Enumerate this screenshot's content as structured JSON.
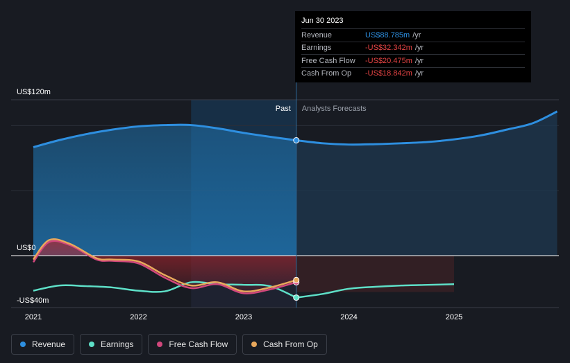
{
  "tooltip": {
    "date": "Jun 30 2023",
    "rows": [
      {
        "label": "Revenue",
        "value": "US$88.785m",
        "unit": "/yr",
        "color": "#2e8fe0"
      },
      {
        "label": "Earnings",
        "value": "-US$32.342m",
        "unit": "/yr",
        "color": "#e84545"
      },
      {
        "label": "Free Cash Flow",
        "value": "-US$20.475m",
        "unit": "/yr",
        "color": "#e84545"
      },
      {
        "label": "Cash From Op",
        "value": "-US$18.842m",
        "unit": "/yr",
        "color": "#e84545"
      }
    ]
  },
  "legend": [
    {
      "label": "Revenue",
      "color": "#2e8fe0"
    },
    {
      "label": "Earnings",
      "color": "#5ee0c8"
    },
    {
      "label": "Free Cash Flow",
      "color": "#d1477c"
    },
    {
      "label": "Cash From Op",
      "color": "#e8a85c"
    }
  ],
  "chart_data": {
    "type": "line",
    "y_tick_labels": [
      "US$120m",
      "US$0",
      "-US$40m"
    ],
    "x_tick_labels": [
      "2021",
      "2022",
      "2023",
      "2024",
      "2025"
    ],
    "past_label": "Past",
    "forecast_label": "Analysts Forecasts",
    "ylim": [
      -40,
      120
    ],
    "xlim": [
      2020.9,
      2025.98
    ],
    "y_ticks": [
      120,
      0,
      -40
    ],
    "x_ticks": [
      2021,
      2022,
      2023,
      2024,
      2025
    ],
    "gridlines": [
      100,
      50
    ],
    "past_split": 2023.5,
    "highlight_start": 2022.5,
    "colors": {
      "revenue": "#2e8fe0",
      "earnings": "#5ee0c8",
      "fcf": "#d1477c",
      "cfo": "#e8a85c"
    },
    "series": [
      {
        "name": "Revenue",
        "key": "revenue",
        "points": [
          [
            2021.0,
            83.5
          ],
          [
            2021.25,
            89
          ],
          [
            2021.5,
            93.5
          ],
          [
            2021.75,
            97
          ],
          [
            2022.0,
            99.5
          ],
          [
            2022.25,
            100.5
          ],
          [
            2022.5,
            100.5
          ],
          [
            2022.75,
            98
          ],
          [
            2023.0,
            94.5
          ],
          [
            2023.25,
            91.5
          ],
          [
            2023.5,
            88.8
          ]
        ],
        "forecast": [
          [
            2023.5,
            88.8
          ],
          [
            2023.75,
            86.5
          ],
          [
            2024.0,
            85.5
          ],
          [
            2024.25,
            85.8
          ],
          [
            2024.5,
            86.5
          ],
          [
            2024.75,
            87.5
          ],
          [
            2025.0,
            89.5
          ],
          [
            2025.25,
            92.5
          ],
          [
            2025.5,
            97
          ],
          [
            2025.75,
            102
          ],
          [
            2025.98,
            111
          ]
        ]
      },
      {
        "name": "Earnings",
        "key": "earnings",
        "points": [
          [
            2021.0,
            -27
          ],
          [
            2021.25,
            -23
          ],
          [
            2021.5,
            -23.5
          ],
          [
            2021.75,
            -24.5
          ],
          [
            2022.0,
            -27
          ],
          [
            2022.25,
            -27.5
          ],
          [
            2022.5,
            -20.5
          ],
          [
            2022.75,
            -22
          ],
          [
            2023.0,
            -22.5
          ],
          [
            2023.25,
            -23.5
          ],
          [
            2023.5,
            -32.3
          ]
        ],
        "forecast": [
          [
            2023.5,
            -32.3
          ],
          [
            2023.75,
            -29.5
          ],
          [
            2024.0,
            -25.5
          ],
          [
            2024.25,
            -24
          ],
          [
            2024.5,
            -23
          ],
          [
            2024.75,
            -22.5
          ],
          [
            2025.0,
            -22
          ]
        ]
      },
      {
        "name": "Free Cash Flow",
        "key": "fcf",
        "points": [
          [
            2021.0,
            -5
          ],
          [
            2021.15,
            10.5
          ],
          [
            2021.35,
            8
          ],
          [
            2021.6,
            -3
          ],
          [
            2021.75,
            -4
          ],
          [
            2022.0,
            -6
          ],
          [
            2022.25,
            -17
          ],
          [
            2022.5,
            -25
          ],
          [
            2022.75,
            -22
          ],
          [
            2023.0,
            -29
          ],
          [
            2023.25,
            -26
          ],
          [
            2023.5,
            -20.5
          ]
        ]
      },
      {
        "name": "Cash From Op",
        "key": "cfo",
        "points": [
          [
            2021.0,
            -3
          ],
          [
            2021.15,
            12
          ],
          [
            2021.35,
            9
          ],
          [
            2021.6,
            -2
          ],
          [
            2021.75,
            -3
          ],
          [
            2022.0,
            -4.5
          ],
          [
            2022.25,
            -15
          ],
          [
            2022.5,
            -23
          ],
          [
            2022.75,
            -20.5
          ],
          [
            2023.0,
            -27.5
          ],
          [
            2023.25,
            -24.5
          ],
          [
            2023.5,
            -18.8
          ]
        ]
      }
    ],
    "forecast_band": {
      "x": [
        2023.5,
        2025.0
      ],
      "y": [
        0,
        -28
      ]
    }
  }
}
